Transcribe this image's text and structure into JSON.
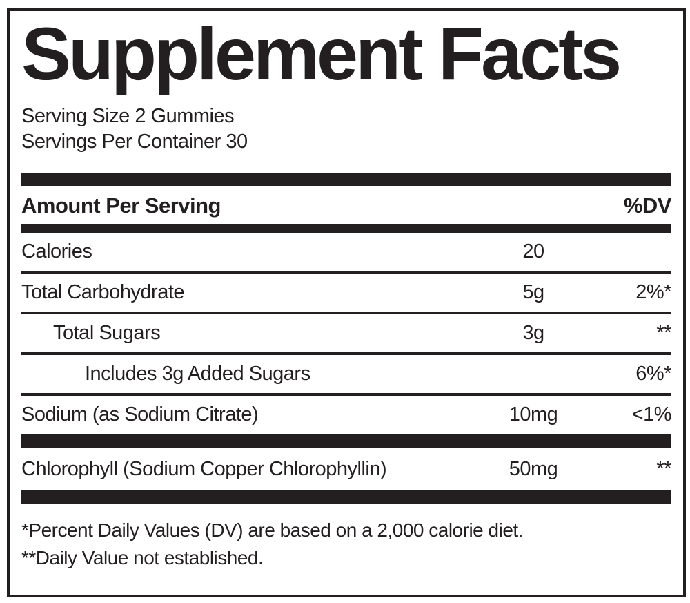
{
  "label": {
    "title": "Supplement Facts",
    "serving_size": "Serving Size 2 Gummies",
    "servings_per_container": "Servings Per Container 30",
    "header": {
      "amount_per_serving": "Amount Per Serving",
      "dv": "%DV"
    },
    "rows": [
      {
        "name": "Calories",
        "amount": "20",
        "dv": "",
        "indent": 0,
        "separator": "thin"
      },
      {
        "name": "Total Carbohydrate",
        "amount": "5g",
        "dv": "2%*",
        "indent": 0,
        "separator": "thin"
      },
      {
        "name": "Total Sugars",
        "amount": "3g",
        "dv": "**",
        "indent": 1,
        "separator": "thin"
      },
      {
        "name": "Includes 3g Added Sugars",
        "amount": "",
        "dv": "6%*",
        "indent": 2,
        "separator": "thin"
      },
      {
        "name": "Sodium (as Sodium Citrate)",
        "amount": "10mg",
        "dv": "<1%",
        "indent": 0,
        "separator": "thick"
      },
      {
        "name": "Chlorophyll (Sodium Copper Chlorophyllin)",
        "amount": "50mg",
        "dv": "**",
        "indent": 0,
        "separator": "thick"
      }
    ],
    "footnotes": [
      "*Percent Daily Values (DV) are based on a 2,000 calorie diet.",
      "**Daily Value not established."
    ],
    "colors": {
      "ink": "#231f20",
      "background": "#ffffff"
    }
  }
}
